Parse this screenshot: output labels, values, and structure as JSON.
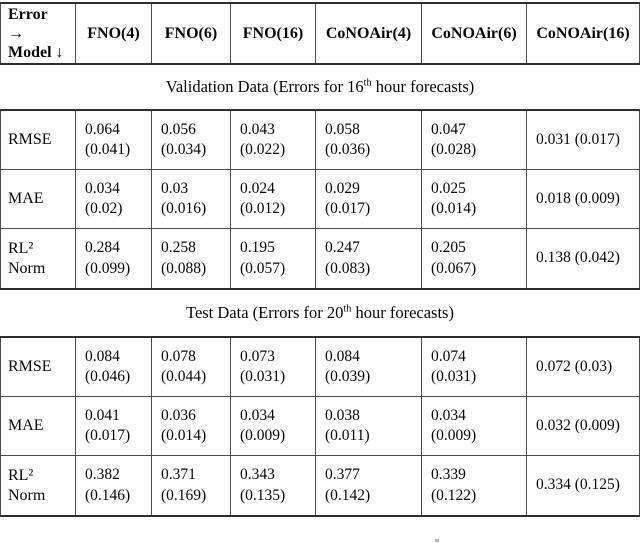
{
  "table": {
    "header": {
      "corner": "Error\n→\nModel ↓",
      "columns": [
        "FNO(4)",
        "FNO(6)",
        "FNO(16)",
        "CoNOAir(4)",
        "CoNOAir(6)",
        "CoNOAir(16)"
      ]
    },
    "sections": [
      {
        "caption": {
          "before": "Validation Data (Errors for 16",
          "sup": "th",
          "after": " hour forecasts)"
        },
        "rows": [
          {
            "label": "RMSE",
            "cells": [
              "0.064\n(0.041)",
              "0.056\n(0.034)",
              "0.043\n(0.022)",
              "0.058\n(0.036)",
              "0.047\n(0.028)",
              "0.031 (0.017)"
            ]
          },
          {
            "label": "MAE",
            "cells": [
              "0.034\n(0.02)",
              "0.03\n(0.016)",
              "0.024\n(0.012)",
              "0.029\n(0.017)",
              "0.025\n(0.014)",
              "0.018 (0.009)"
            ]
          },
          {
            "label": "RL²\nNorm",
            "cells": [
              "0.284\n(0.099)",
              "0.258\n(0.088)",
              "0.195\n(0.057)",
              "0.247\n(0.083)",
              "0.205\n(0.067)",
              "0.138 (0.042)"
            ]
          }
        ]
      },
      {
        "caption": {
          "before": "Test Data (Errors for 20",
          "sup": "th",
          "after": " hour forecasts)"
        },
        "rows": [
          {
            "label": "RMSE",
            "cells": [
              "0.084\n(0.046)",
              "0.078\n(0.044)",
              "0.073\n(0.031)",
              "0.084\n(0.039)",
              "0.074\n(0.031)",
              "0.072 (0.03)"
            ]
          },
          {
            "label": "MAE",
            "cells": [
              "0.041\n(0.017)",
              "0.036\n(0.014)",
              "0.034\n(0.009)",
              "0.038\n(0.011)",
              "0.034\n(0.009)",
              "0.032 (0.009)"
            ]
          },
          {
            "label": "RL²\nNorm",
            "cells": [
              "0.382\n(0.146)",
              "0.371\n(0.169)",
              "0.343\n(0.135)",
              "0.377\n(0.142)",
              "0.339\n(0.122)",
              "0.334 (0.125)"
            ]
          }
        ]
      }
    ]
  }
}
